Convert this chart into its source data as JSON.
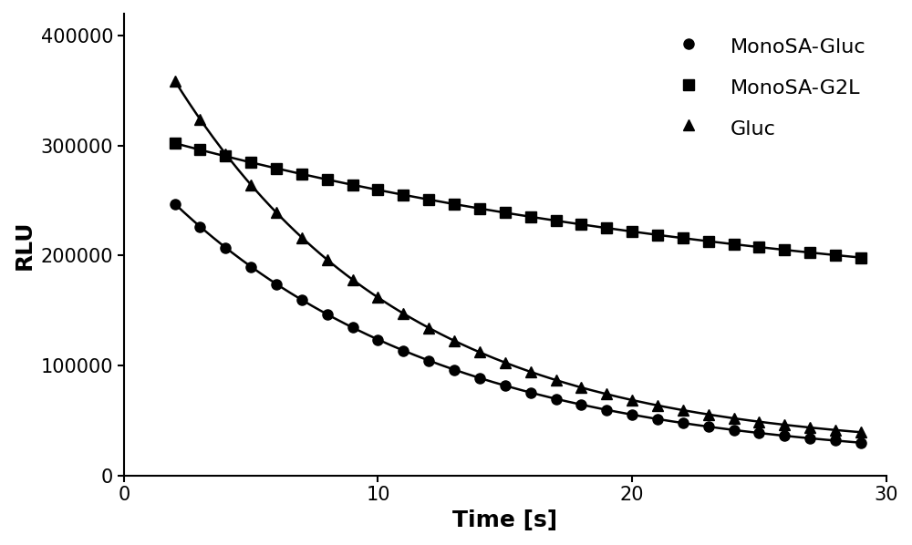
{
  "title": "",
  "xlabel": "Time [s]",
  "ylabel": "RLU",
  "xlim": [
    0,
    30
  ],
  "ylim": [
    0,
    420000
  ],
  "xticks": [
    0,
    10,
    20,
    30
  ],
  "yticks": [
    0,
    100000,
    200000,
    300000,
    400000
  ],
  "background_color": "#ffffff",
  "series": [
    {
      "label": "MonoSA-Gluc",
      "marker": "o",
      "color": "#000000",
      "A": 285000,
      "k": 0.092,
      "C": 10000,
      "markersize": 8
    },
    {
      "label": "MonoSA-G2L",
      "marker": "s",
      "color": "#000000",
      "A": 175000,
      "k": 0.038,
      "C": 140000,
      "markersize": 8
    },
    {
      "label": "Gluc",
      "marker": "^",
      "color": "#000000",
      "A": 420000,
      "k": 0.11,
      "C": 22000,
      "markersize": 9
    }
  ],
  "legend_loc": "upper right",
  "legend_fontsize": 16,
  "axis_fontsize": 18,
  "tick_fontsize": 15,
  "linewidth": 1.8,
  "t_start": 2,
  "t_end": 29,
  "t_step": 1
}
